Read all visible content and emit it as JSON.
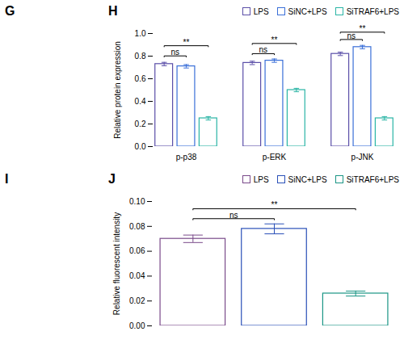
{
  "chart_data": [
    {
      "type": "bar",
      "title": "H",
      "categories": [
        "p-p38",
        "p-ERK",
        "p-JNK"
      ],
      "series": [
        {
          "name": "LPS",
          "color": "#5b4fa8",
          "values": [
            0.73,
            0.74,
            0.82
          ],
          "errors": [
            0.015,
            0.015,
            0.015
          ]
        },
        {
          "name": "SiNC+LPS",
          "color": "#3a6fd8",
          "values": [
            0.71,
            0.76,
            0.88
          ],
          "errors": [
            0.015,
            0.015,
            0.015
          ]
        },
        {
          "name": "SiTRAF6+LPS",
          "color": "#2ab5a5",
          "values": [
            0.25,
            0.5,
            0.25
          ],
          "errors": [
            0.015,
            0.015,
            0.015
          ]
        }
      ],
      "ylabel": "Relative protein expression",
      "ylim": [
        0.0,
        1.0
      ],
      "yticks": [
        {
          "value": 0.0,
          "label": "0.0"
        },
        0.2,
        0.4,
        0.6,
        0.8,
        {
          "value": 1.0,
          "label": "1.0"
        }
      ],
      "legend": "upper right",
      "grid": false,
      "annotations": [
        {
          "text": "ns",
          "category": "p-p38",
          "from": "LPS",
          "to": "SiNC+LPS",
          "y": 0.79
        },
        {
          "text": "**",
          "category": "p-p38",
          "from": "LPS",
          "to": "SiTRAF6+LPS",
          "y": 0.88
        },
        {
          "text": "ns",
          "category": "p-ERK",
          "from": "LPS",
          "to": "SiNC+LPS",
          "y": 0.81
        },
        {
          "text": "**",
          "category": "p-ERK",
          "from": "LPS",
          "to": "SiTRAF6+LPS",
          "y": 0.9
        },
        {
          "text": "ns",
          "category": "p-JNK",
          "from": "LPS",
          "to": "SiNC+LPS",
          "y": 0.935
        },
        {
          "text": "**",
          "category": "p-JNK",
          "from": "LPS",
          "to": "SiTRAF6+LPS",
          "y": 1.0
        }
      ]
    },
    {
      "type": "bar",
      "title": "J",
      "categories": [
        "LPS",
        "SiNC+LPS",
        "SiTRAF6+LPS"
      ],
      "values": [
        0.07,
        0.078,
        0.026
      ],
      "errors": [
        0.003,
        0.004,
        0.002
      ],
      "colors": [
        "#7a4a8a",
        "#2a50b8",
        "#1a9585"
      ],
      "ylabel": "Relative fluorescent intensity",
      "ylim": [
        0.0,
        0.1
      ],
      "yticks": [
        {
          "value": 0.0,
          "label": "0.00"
        },
        0.02,
        0.04,
        0.06,
        0.08,
        {
          "value": 0.1,
          "label": "0.10"
        }
      ],
      "legend": "upper right",
      "grid": false,
      "tick_labels": "y",
      "annotations": [
        {
          "text": "ns",
          "from": "LPS",
          "to": "SiNC+LPS",
          "y": 0.085
        },
        {
          "text": "**",
          "from": "LPS",
          "to": "SiTRAF6+LPS",
          "y": 0.093
        }
      ]
    }
  ],
  "annotations": [
    {
      "text": "G"
    },
    {
      "text": "I"
    }
  ]
}
